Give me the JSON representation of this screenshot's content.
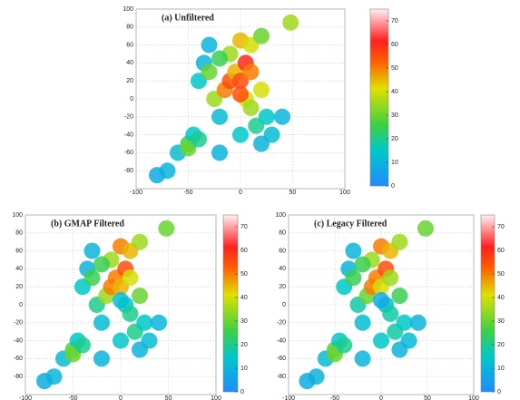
{
  "chart_data": [
    {
      "type": "heatmap",
      "title": "(a) Unfiltered",
      "colormap": "jet",
      "grid": true,
      "x": [
        -70,
        -60,
        -50,
        -45,
        -40,
        -35,
        -30,
        -25,
        -20,
        -15,
        -10,
        -5,
        0,
        5,
        10,
        15,
        20,
        25,
        30,
        -30,
        -20,
        -10,
        0,
        10,
        20,
        -50,
        -40,
        -20,
        0,
        20,
        40,
        -80,
        5,
        0,
        10,
        48
      ],
      "y": [
        -80,
        -60,
        -50,
        -40,
        20,
        40,
        30,
        0,
        -20,
        10,
        20,
        30,
        20,
        0,
        -10,
        -30,
        10,
        -20,
        -40,
        60,
        -60,
        50,
        65,
        60,
        70,
        -55,
        -45,
        45,
        -40,
        -50,
        -20,
        -85,
        40,
        5,
        30,
        85
      ],
      "values": [
        10,
        12,
        25,
        15,
        15,
        10,
        30,
        35,
        12,
        50,
        55,
        45,
        55,
        40,
        35,
        20,
        40,
        15,
        12,
        10,
        10,
        35,
        45,
        40,
        30,
        30,
        20,
        25,
        15,
        10,
        10,
        8,
        60,
        55,
        50,
        35
      ],
      "xlim": [
        -100,
        100
      ],
      "ylim": [
        -100,
        100
      ],
      "xticks": [
        -100,
        -50,
        0,
        50,
        100
      ],
      "yticks": [
        -80,
        -60,
        -40,
        -20,
        0,
        20,
        40,
        60,
        80,
        100
      ],
      "clim": [
        0,
        75
      ],
      "cticks": [
        0,
        10,
        20,
        30,
        40,
        50,
        60,
        70
      ]
    },
    {
      "type": "heatmap",
      "title": "(b) GMAP Filtered",
      "colormap": "jet",
      "grid": true,
      "x": [
        -70,
        -60,
        -50,
        -45,
        -40,
        -35,
        -30,
        -25,
        -20,
        -15,
        -10,
        -5,
        0,
        5,
        10,
        15,
        20,
        25,
        30,
        -30,
        -20,
        -10,
        0,
        10,
        20,
        -50,
        -40,
        -20,
        0,
        20,
        40,
        -80,
        5,
        0,
        10,
        48
      ],
      "y": [
        -80,
        -60,
        -50,
        -40,
        20,
        40,
        30,
        0,
        -20,
        10,
        20,
        30,
        20,
        0,
        -10,
        -30,
        10,
        -20,
        -40,
        60,
        -60,
        50,
        65,
        60,
        70,
        -55,
        -45,
        45,
        -40,
        -50,
        -20,
        -85,
        40,
        5,
        30,
        85
      ],
      "values": [
        10,
        12,
        28,
        15,
        15,
        10,
        25,
        20,
        12,
        35,
        50,
        50,
        45,
        15,
        20,
        20,
        30,
        15,
        12,
        10,
        10,
        35,
        50,
        45,
        35,
        30,
        20,
        25,
        15,
        10,
        10,
        8,
        55,
        12,
        40,
        30
      ],
      "xlim": [
        -100,
        100
      ],
      "ylim": [
        -100,
        100
      ],
      "xticks": [
        -100,
        -50,
        0,
        50,
        100
      ],
      "yticks": [
        -80,
        -60,
        -40,
        -20,
        0,
        20,
        40,
        60,
        80,
        100
      ],
      "clim": [
        0,
        75
      ],
      "cticks": [
        0,
        10,
        20,
        30,
        40,
        50,
        60,
        70
      ]
    },
    {
      "type": "heatmap",
      "title": "(c) Legacy Filtered",
      "colormap": "jet",
      "grid": true,
      "x": [
        -70,
        -60,
        -50,
        -45,
        -40,
        -35,
        -30,
        -25,
        -20,
        -15,
        -10,
        -5,
        0,
        5,
        10,
        15,
        20,
        25,
        30,
        -30,
        -20,
        -10,
        0,
        10,
        20,
        -50,
        -40,
        -20,
        0,
        20,
        40,
        -80,
        5,
        0,
        10,
        48
      ],
      "y": [
        -80,
        -60,
        -50,
        -40,
        20,
        40,
        30,
        0,
        -20,
        10,
        20,
        30,
        20,
        0,
        -10,
        -30,
        10,
        -20,
        -40,
        60,
        -60,
        50,
        65,
        60,
        70,
        -55,
        -45,
        45,
        -40,
        -50,
        -20,
        -85,
        40,
        5,
        30,
        85
      ],
      "values": [
        10,
        12,
        28,
        15,
        15,
        10,
        25,
        18,
        12,
        30,
        50,
        50,
        40,
        12,
        18,
        18,
        25,
        15,
        12,
        10,
        10,
        35,
        50,
        45,
        35,
        30,
        20,
        25,
        15,
        10,
        10,
        8,
        55,
        8,
        35,
        30
      ],
      "xlim": [
        -100,
        100
      ],
      "ylim": [
        -100,
        100
      ],
      "xticks": [
        -100,
        -50,
        0,
        50,
        100
      ],
      "yticks": [
        -80,
        -60,
        -40,
        -20,
        0,
        20,
        40,
        60,
        80,
        100
      ],
      "clim": [
        0,
        75
      ],
      "cticks": [
        0,
        10,
        20,
        30,
        40,
        50,
        60,
        70
      ]
    }
  ]
}
